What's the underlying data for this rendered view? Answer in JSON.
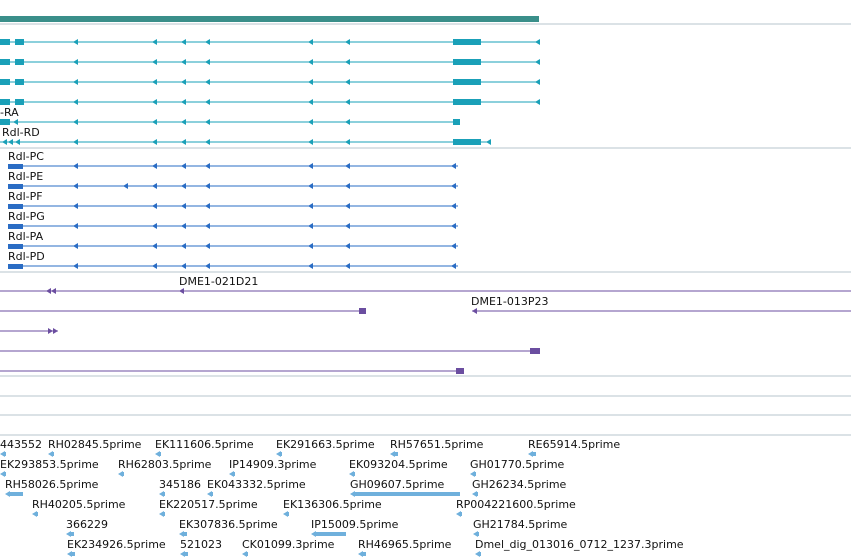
{
  "colors": {
    "ruler": "#3a8f8a",
    "separator": "#b7c4cc",
    "transcript": "#1aa0b8",
    "protein": "#2a6cc4",
    "clone": "#6b4ea0",
    "est": "#6fb0dc"
  },
  "transcript_labels": [
    "-RA",
    "Rdl-RD"
  ],
  "protein_labels": [
    "Rdl-PC",
    "Rdl-PE",
    "Rdl-PF",
    "Rdl-PG",
    "Rdl-PA",
    "Rdl-PD"
  ],
  "clone_labels": [
    "DME1-021D21",
    "DME1-013P23"
  ],
  "est_labels": [
    "443552",
    "RH02845.5prime",
    "EK111606.5prime",
    "EK291663.5prime",
    "RH57651.5prime",
    "RE65914.5prime",
    "EK293853.5prime",
    "RH62803.5prime",
    "IP14909.3prime",
    "EK093204.5prime",
    "GH01770.5prime",
    "RH58026.5prime",
    "345186",
    "EK043332.5prime",
    "GH09607.5prime",
    "GH26234.5prime",
    "RH40205.5prime",
    "EK220517.5prime",
    "EK136306.5prime",
    "RP004221600.5prime",
    "366229",
    "EK307836.5prime",
    "IP15009.5prime",
    "GH21784.5prime",
    "EK234926.5prime",
    "521023",
    "CK01099.3prime",
    "RH46965.5prime",
    "Dmel_dig_013016_0712_1237.3prime"
  ]
}
